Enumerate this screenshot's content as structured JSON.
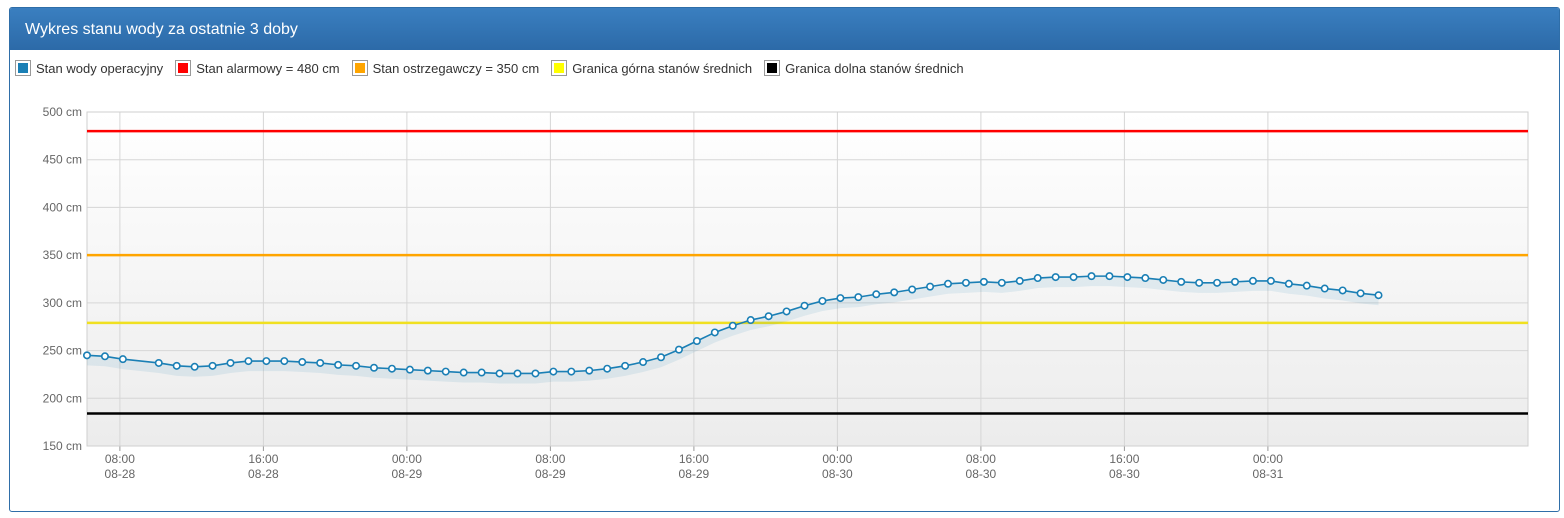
{
  "panel": {
    "title": "Wykres stanu wody za ostatnie 3 doby"
  },
  "legend": [
    {
      "label": "Stan wody operacyjny",
      "color": "#1a7fb5"
    },
    {
      "label": "Stan alarmowy = 480 cm",
      "color": "#ff0000"
    },
    {
      "label": "Stan ostrzegawczy = 350 cm",
      "color": "#ffa500"
    },
    {
      "label": "Granica górna stanów średnich",
      "color": "#ffff00"
    },
    {
      "label": "Granica dolna stanów średnich",
      "color": "#000000"
    }
  ],
  "chart_data": {
    "type": "line",
    "ylim": [
      150,
      500
    ],
    "y_ticks": [
      500,
      450,
      400,
      350,
      300,
      250,
      200,
      150
    ],
    "y_unit": "cm",
    "x_axis": {
      "type": "time",
      "range": [
        "2024-08-28 06:10",
        "2024-08-31 14:30"
      ],
      "ticks": [
        {
          "time": "2024-08-28 08:00",
          "label_time": "08:00",
          "label_date": "08-28"
        },
        {
          "time": "2024-08-28 16:00",
          "label_time": "16:00",
          "label_date": "08-28"
        },
        {
          "time": "2024-08-29 00:00",
          "label_time": "00:00",
          "label_date": "08-29"
        },
        {
          "time": "2024-08-29 08:00",
          "label_time": "08:00",
          "label_date": "08-29"
        },
        {
          "time": "2024-08-29 16:00",
          "label_time": "16:00",
          "label_date": "08-29"
        },
        {
          "time": "2024-08-30 00:00",
          "label_time": "00:00",
          "label_date": "08-30"
        },
        {
          "time": "2024-08-30 08:00",
          "label_time": "08:00",
          "label_date": "08-30"
        },
        {
          "time": "2024-08-30 16:00",
          "label_time": "16:00",
          "label_date": "08-30"
        },
        {
          "time": "2024-08-31 00:00",
          "label_time": "00:00",
          "label_date": "08-31"
        }
      ]
    },
    "grid": true,
    "thresholds": [
      {
        "name": "Stan alarmowy = 480 cm",
        "value": 480,
        "color": "#ff0000"
      },
      {
        "name": "Stan ostrzegawczy = 350 cm",
        "value": 350,
        "color": "#ffa500"
      },
      {
        "name": "Granica górna stanów średnich",
        "value": 279,
        "color": "#f0e020"
      },
      {
        "name": "Granica dolna stanów średnich",
        "value": 184,
        "color": "#000000"
      }
    ],
    "series": [
      {
        "name": "Stan wody operacyjny",
        "color": "#1a7fb5",
        "points": [
          [
            "2024-08-28 06:10",
            245
          ],
          [
            "2024-08-28 07:10",
            244
          ],
          [
            "2024-08-28 08:10",
            241
          ],
          [
            "2024-08-28 10:10",
            237
          ],
          [
            "2024-08-28 11:10",
            234
          ],
          [
            "2024-08-28 12:10",
            233
          ],
          [
            "2024-08-28 13:10",
            234
          ],
          [
            "2024-08-28 14:10",
            237
          ],
          [
            "2024-08-28 15:10",
            239
          ],
          [
            "2024-08-28 16:10",
            239
          ],
          [
            "2024-08-28 17:10",
            239
          ],
          [
            "2024-08-28 18:10",
            238
          ],
          [
            "2024-08-28 19:10",
            237
          ],
          [
            "2024-08-28 20:10",
            235
          ],
          [
            "2024-08-28 21:10",
            234
          ],
          [
            "2024-08-28 22:10",
            232
          ],
          [
            "2024-08-28 23:10",
            231
          ],
          [
            "2024-08-29 00:10",
            230
          ],
          [
            "2024-08-29 01:10",
            229
          ],
          [
            "2024-08-29 02:10",
            228
          ],
          [
            "2024-08-29 03:10",
            227
          ],
          [
            "2024-08-29 04:10",
            227
          ],
          [
            "2024-08-29 05:10",
            226
          ],
          [
            "2024-08-29 06:10",
            226
          ],
          [
            "2024-08-29 07:10",
            226
          ],
          [
            "2024-08-29 08:10",
            228
          ],
          [
            "2024-08-29 09:10",
            228
          ],
          [
            "2024-08-29 10:10",
            229
          ],
          [
            "2024-08-29 11:10",
            231
          ],
          [
            "2024-08-29 12:10",
            234
          ],
          [
            "2024-08-29 13:10",
            238
          ],
          [
            "2024-08-29 14:10",
            243
          ],
          [
            "2024-08-29 15:10",
            251
          ],
          [
            "2024-08-29 16:10",
            260
          ],
          [
            "2024-08-29 17:10",
            269
          ],
          [
            "2024-08-29 18:10",
            276
          ],
          [
            "2024-08-29 19:10",
            282
          ],
          [
            "2024-08-29 20:10",
            286
          ],
          [
            "2024-08-29 21:10",
            291
          ],
          [
            "2024-08-29 22:10",
            297
          ],
          [
            "2024-08-29 23:10",
            302
          ],
          [
            "2024-08-30 00:10",
            305
          ],
          [
            "2024-08-30 01:10",
            306
          ],
          [
            "2024-08-30 02:10",
            309
          ],
          [
            "2024-08-30 03:10",
            311
          ],
          [
            "2024-08-30 04:10",
            314
          ],
          [
            "2024-08-30 05:10",
            317
          ],
          [
            "2024-08-30 06:10",
            320
          ],
          [
            "2024-08-30 07:10",
            321
          ],
          [
            "2024-08-30 08:10",
            322
          ],
          [
            "2024-08-30 09:10",
            321
          ],
          [
            "2024-08-30 10:10",
            323
          ],
          [
            "2024-08-30 11:10",
            326
          ],
          [
            "2024-08-30 12:10",
            327
          ],
          [
            "2024-08-30 13:10",
            327
          ],
          [
            "2024-08-30 14:10",
            328
          ],
          [
            "2024-08-30 15:10",
            328
          ],
          [
            "2024-08-30 16:10",
            327
          ],
          [
            "2024-08-30 17:10",
            326
          ],
          [
            "2024-08-30 18:10",
            324
          ],
          [
            "2024-08-30 19:10",
            322
          ],
          [
            "2024-08-30 20:10",
            321
          ],
          [
            "2024-08-30 21:10",
            321
          ],
          [
            "2024-08-30 22:10",
            322
          ],
          [
            "2024-08-30 23:10",
            323
          ],
          [
            "2024-08-31 00:10",
            323
          ],
          [
            "2024-08-31 01:10",
            320
          ],
          [
            "2024-08-31 02:10",
            318
          ],
          [
            "2024-08-31 03:10",
            315
          ],
          [
            "2024-08-31 04:10",
            313
          ],
          [
            "2024-08-31 05:10",
            310
          ],
          [
            "2024-08-31 06:10",
            308
          ]
        ]
      }
    ]
  }
}
